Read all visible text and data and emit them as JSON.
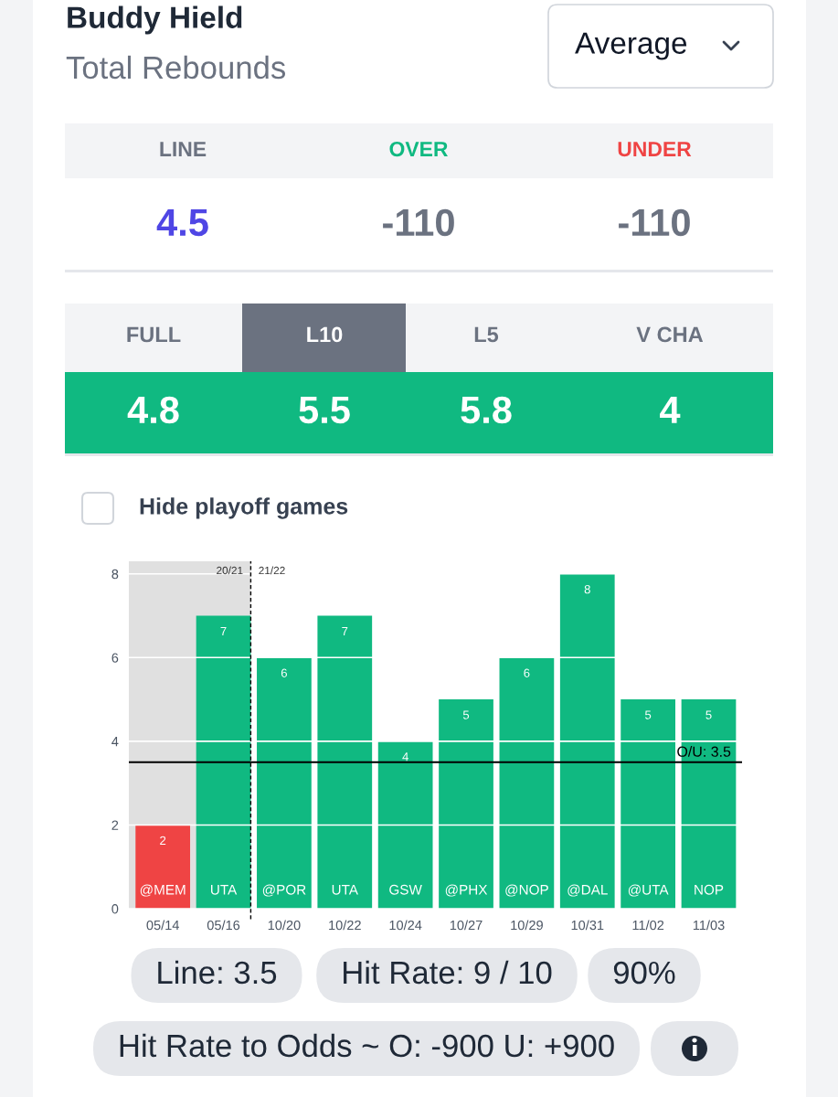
{
  "chart_data": [
    {
      "type": "other",
      "title": "Buddy Hield",
      "subtitle": "Total Rebounds",
      "annotations": [
        "Average",
        "LINE",
        "OVER",
        "UNDER",
        "4.5",
        "-110",
        "-110",
        "FULL",
        "L10",
        "L5",
        "V CHA",
        "4.8",
        "5.5",
        "5.8",
        "4",
        "Hide playoff games"
      ]
    },
    {
      "type": "bar",
      "categories": [
        "05/14",
        "05/16",
        "10/20",
        "10/22",
        "10/24",
        "10/27",
        "10/29",
        "10/31",
        "11/02",
        "11/03"
      ],
      "values": [
        2,
        7,
        6,
        7,
        4,
        5,
        6,
        8,
        5,
        5
      ],
      "colors": [
        "#ef4444",
        "#10b981",
        "#10b981",
        "#10b981",
        "#10b981",
        "#10b981",
        "#10b981",
        "#10b981",
        "#10b981",
        "#10b981"
      ],
      "ylim": [
        0,
        8.3
      ],
      "yticks": [
        0,
        2,
        4,
        6,
        8
      ],
      "grid": "y",
      "data_labels": true,
      "bands": [
        {
          "axis": "x",
          "from": "05/14",
          "to": "05/16",
          "label": "20/21",
          "color": "#e0e0e0"
        }
      ],
      "ref_lines": [
        {
          "axis": "y",
          "value": 3.5,
          "label": "O/U: 3.5",
          "color": "#000000"
        },
        {
          "axis": "x",
          "value": "05/16",
          "label": "21/22",
          "color": "#000000",
          "line_style": "dashed"
        }
      ],
      "annotations": [
        {
          "text": "@MEM",
          "x": "05/14",
          "y": 0
        },
        {
          "text": "UTA",
          "x": "05/16",
          "y": 0
        },
        {
          "text": "@POR",
          "x": "10/20",
          "y": 0
        },
        {
          "text": "UTA",
          "x": "10/22",
          "y": 0
        },
        {
          "text": "GSW",
          "x": "10/24",
          "y": 0
        },
        {
          "text": "@PHX",
          "x": "10/27",
          "y": 0
        },
        {
          "text": "@NOP",
          "x": "10/29",
          "y": 0
        },
        {
          "text": "@DAL",
          "x": "10/31",
          "y": 0
        },
        {
          "text": "@UTA",
          "x": "11/02",
          "y": 0
        },
        {
          "text": "NOP",
          "x": "11/03",
          "y": 0
        },
        "Line: 3.5",
        "Hit Rate: 9 / 10",
        "90%",
        "Hit Rate to Odds ~ O: -900 U: +900"
      ]
    }
  ]
}
